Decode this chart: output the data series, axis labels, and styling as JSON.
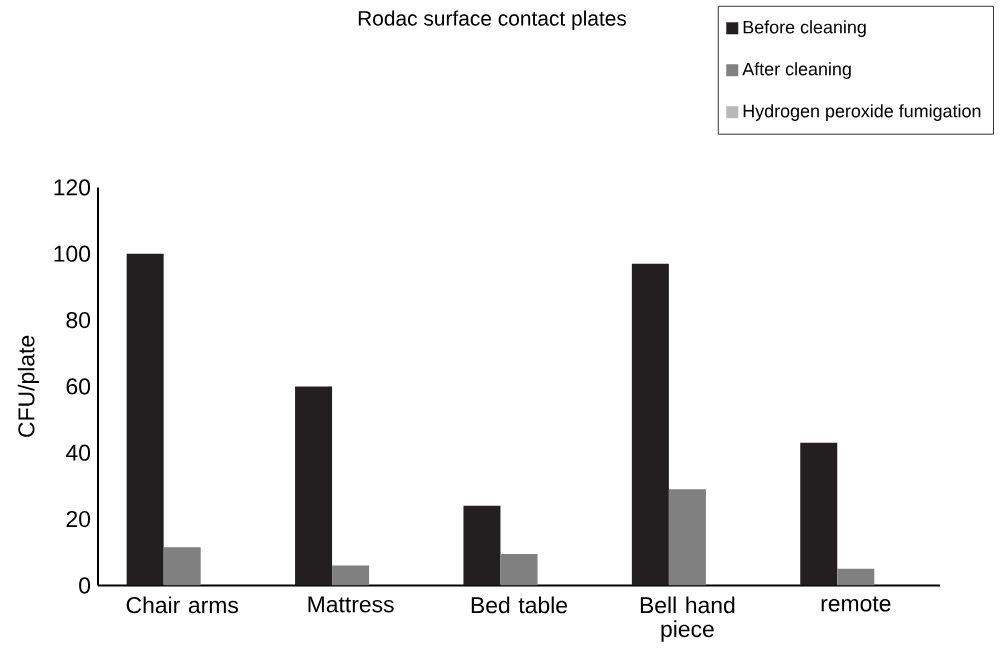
{
  "chart_data": {
    "type": "bar",
    "title": "Rodac surface contact plates",
    "ylabel": "CFU/plate",
    "categories": [
      "Chair arms",
      "Mattress",
      "Bed table",
      "Bell hand piece",
      "remote"
    ],
    "series": [
      {
        "name": "Before cleaning",
        "color": "#231f20",
        "values": [
          100,
          60,
          24,
          97,
          43
        ]
      },
      {
        "name": "After cleaning",
        "color": "#808080",
        "values": [
          11.5,
          6,
          9.5,
          29,
          5
        ]
      },
      {
        "name": "Hydrogen peroxide fumigation",
        "color": "#b8b8b8",
        "values": [
          null,
          null,
          0,
          null,
          null
        ]
      }
    ],
    "ylim": [
      0,
      120
    ],
    "yticks": [
      0,
      20,
      40,
      60,
      80,
      100,
      120
    ],
    "legend": "top right",
    "grid": false
  }
}
